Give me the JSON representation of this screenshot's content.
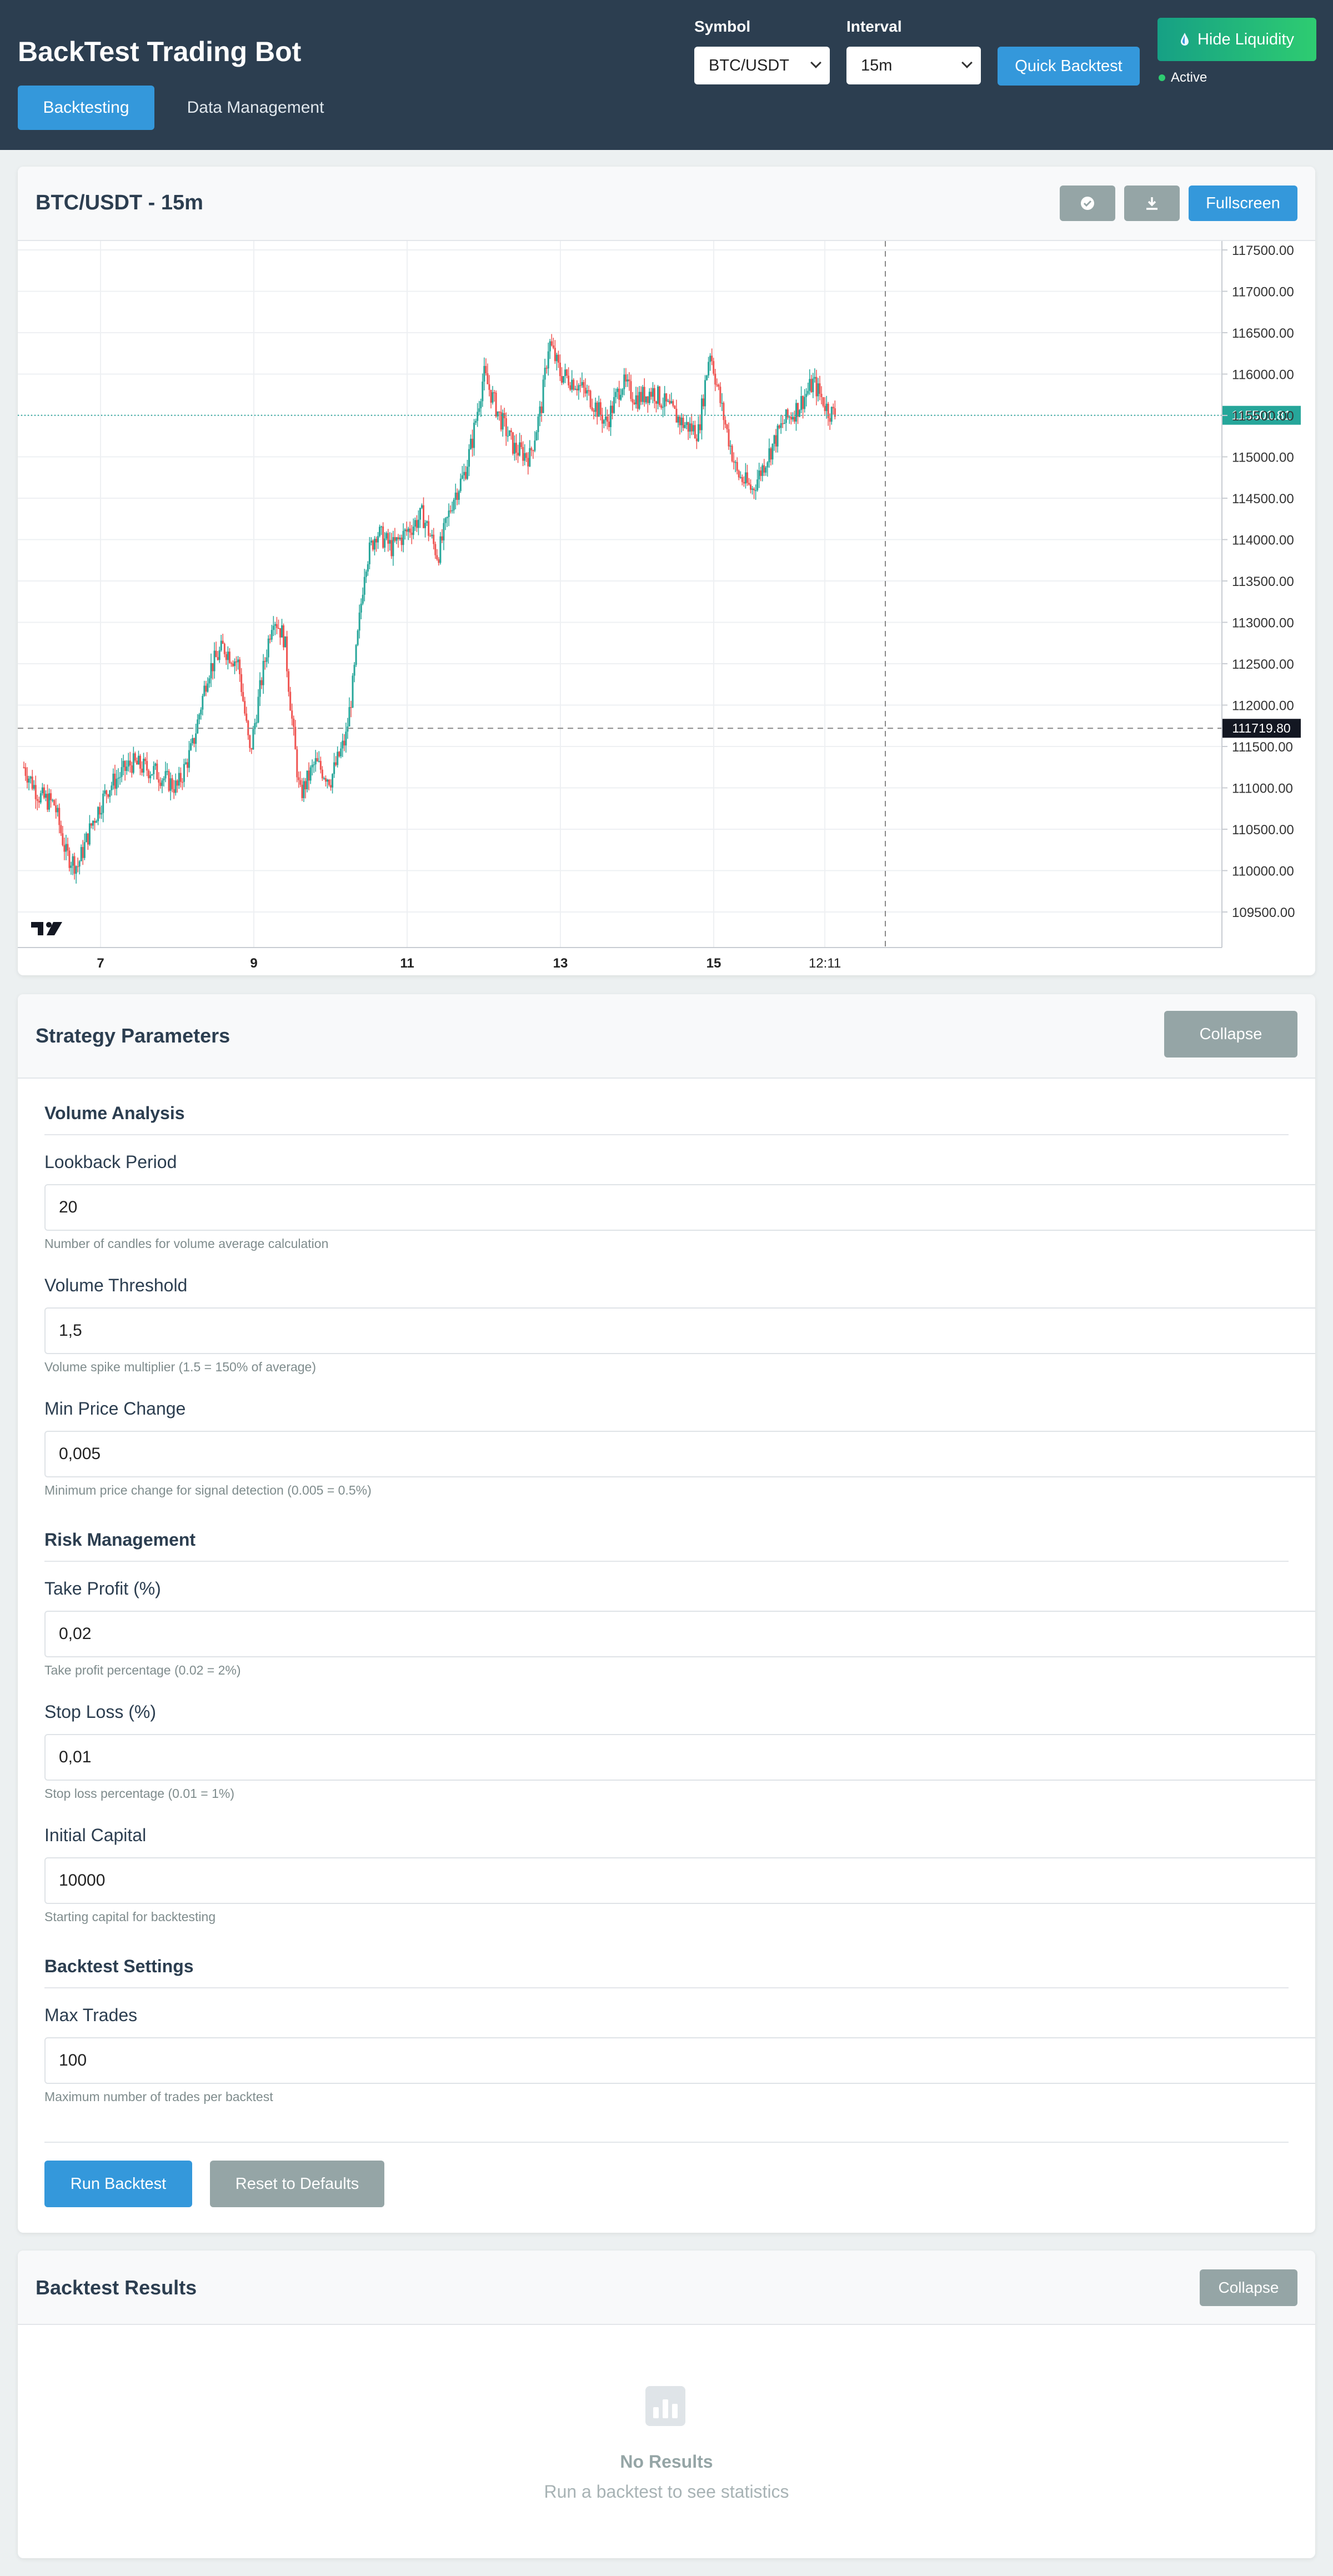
{
  "header": {
    "title": "BackTest Trading Bot",
    "tabs": [
      {
        "label": "Backtesting"
      },
      {
        "label": "Data Management"
      }
    ],
    "symbol_label": "Symbol",
    "symbol_value": "BTC/USDT",
    "interval_label": "Interval",
    "interval_value": "15m",
    "quick_backtest_label": "Quick Backtest",
    "liquidity_label": "Hide Liquidity",
    "status_label": "Active"
  },
  "chart_card": {
    "title": "BTC/USDT - 15m",
    "fullscreen_label": "Fullscreen",
    "icons": [
      "check-circle-icon",
      "download-icon",
      "tradingview-logo-icon"
    ]
  },
  "chart_data": {
    "type": "candlestick",
    "title": "BTC/USDT - 15m",
    "x_ticks": [
      "7",
      "9",
      "11",
      "13",
      "15",
      "12:11"
    ],
    "y_ticks": [
      "117500.00",
      "117000.00",
      "116500.00",
      "116000.00",
      "115500.00",
      "115000.00",
      "114500.00",
      "114000.00",
      "113500.00",
      "113000.00",
      "112500.00",
      "112000.00",
      "111500.00",
      "111000.00",
      "110500.00",
      "110000.00",
      "109500.00"
    ],
    "ylim": [
      109200,
      117600
    ],
    "last_price_label": "115501.81",
    "last_price": 115501.81,
    "crosshair_price_label": "111719.80",
    "crosshair_price": 111719.8,
    "close_path": [
      {
        "x": 6.0,
        "y": 111250
      },
      {
        "x": 6.2,
        "y": 110900
      },
      {
        "x": 6.4,
        "y": 110800
      },
      {
        "x": 6.55,
        "y": 110200
      },
      {
        "x": 6.7,
        "y": 110050
      },
      {
        "x": 6.9,
        "y": 110600
      },
      {
        "x": 7.1,
        "y": 111000
      },
      {
        "x": 7.4,
        "y": 111300
      },
      {
        "x": 7.7,
        "y": 111200
      },
      {
        "x": 8.0,
        "y": 111000
      },
      {
        "x": 8.2,
        "y": 111500
      },
      {
        "x": 8.4,
        "y": 112400
      },
      {
        "x": 8.6,
        "y": 112700
      },
      {
        "x": 8.8,
        "y": 112500
      },
      {
        "x": 8.95,
        "y": 111400
      },
      {
        "x": 9.1,
        "y": 112300
      },
      {
        "x": 9.25,
        "y": 113100
      },
      {
        "x": 9.4,
        "y": 112800
      },
      {
        "x": 9.5,
        "y": 111800
      },
      {
        "x": 9.6,
        "y": 110900
      },
      {
        "x": 9.8,
        "y": 111300
      },
      {
        "x": 10.0,
        "y": 111100
      },
      {
        "x": 10.2,
        "y": 111600
      },
      {
        "x": 10.3,
        "y": 112300
      },
      {
        "x": 10.45,
        "y": 113700
      },
      {
        "x": 10.6,
        "y": 114100
      },
      {
        "x": 10.8,
        "y": 113900
      },
      {
        "x": 11.0,
        "y": 114100
      },
      {
        "x": 11.2,
        "y": 114300
      },
      {
        "x": 11.4,
        "y": 113800
      },
      {
        "x": 11.6,
        "y": 114500
      },
      {
        "x": 11.75,
        "y": 114800
      },
      {
        "x": 11.85,
        "y": 115200
      },
      {
        "x": 12.0,
        "y": 116000
      },
      {
        "x": 12.2,
        "y": 115500
      },
      {
        "x": 12.4,
        "y": 115100
      },
      {
        "x": 12.6,
        "y": 115000
      },
      {
        "x": 12.75,
        "y": 115600
      },
      {
        "x": 12.85,
        "y": 116400
      },
      {
        "x": 13.0,
        "y": 116000
      },
      {
        "x": 13.2,
        "y": 115900
      },
      {
        "x": 13.4,
        "y": 115700
      },
      {
        "x": 13.6,
        "y": 115400
      },
      {
        "x": 13.8,
        "y": 115900
      },
      {
        "x": 14.0,
        "y": 115700
      },
      {
        "x": 14.2,
        "y": 115800
      },
      {
        "x": 14.4,
        "y": 115600
      },
      {
        "x": 14.6,
        "y": 115400
      },
      {
        "x": 14.8,
        "y": 115300
      },
      {
        "x": 14.95,
        "y": 116300
      },
      {
        "x": 15.1,
        "y": 115600
      },
      {
        "x": 15.3,
        "y": 114800
      },
      {
        "x": 15.5,
        "y": 114600
      },
      {
        "x": 15.7,
        "y": 115000
      },
      {
        "x": 15.9,
        "y": 115400
      },
      {
        "x": 16.1,
        "y": 115600
      },
      {
        "x": 16.3,
        "y": 115900
      },
      {
        "x": 16.5,
        "y": 115550
      },
      {
        "x": 16.6,
        "y": 115500
      }
    ]
  },
  "strategy_card": {
    "title": "Strategy Parameters",
    "collapse_label": "Collapse",
    "sections": [
      {
        "heading": "Volume Analysis"
      },
      {
        "heading": "Risk Management"
      },
      {
        "heading": "Backtest Settings"
      }
    ],
    "fields": [
      {
        "label": "Lookback Period",
        "value": "20",
        "help": "Number of candles for volume average calculation"
      },
      {
        "label": "Volume Threshold",
        "value": "1,5",
        "help": "Volume spike multiplier (1.5 = 150% of average)"
      },
      {
        "label": "Min Price Change",
        "value": "0,005",
        "help": "Minimum price change for signal detection (0.005 = 0.5%)"
      },
      {
        "label": "Take Profit (%)",
        "value": "0,02",
        "help": "Take profit percentage (0.02 = 2%)"
      },
      {
        "label": "Stop Loss (%)",
        "value": "0,01",
        "help": "Stop loss percentage (0.01 = 1%)"
      },
      {
        "label": "Initial Capital",
        "value": "10000",
        "help": "Starting capital for backtesting"
      },
      {
        "label": "Max Trades",
        "value": "100",
        "help": "Maximum number of trades per backtest"
      }
    ],
    "run_label": "Run Backtest",
    "reset_label": "Reset to Defaults"
  },
  "results_card": {
    "title": "Backtest Results",
    "collapse_label": "Collapse",
    "empty_title": "No Results",
    "empty_subtitle": "Run a backtest to see statistics"
  },
  "colors": {
    "header_bg": "#2c3e50",
    "primary": "#3498db",
    "secondary": "#95a5a6",
    "up_candle": "#26a69a",
    "down_candle": "#ef5350"
  }
}
